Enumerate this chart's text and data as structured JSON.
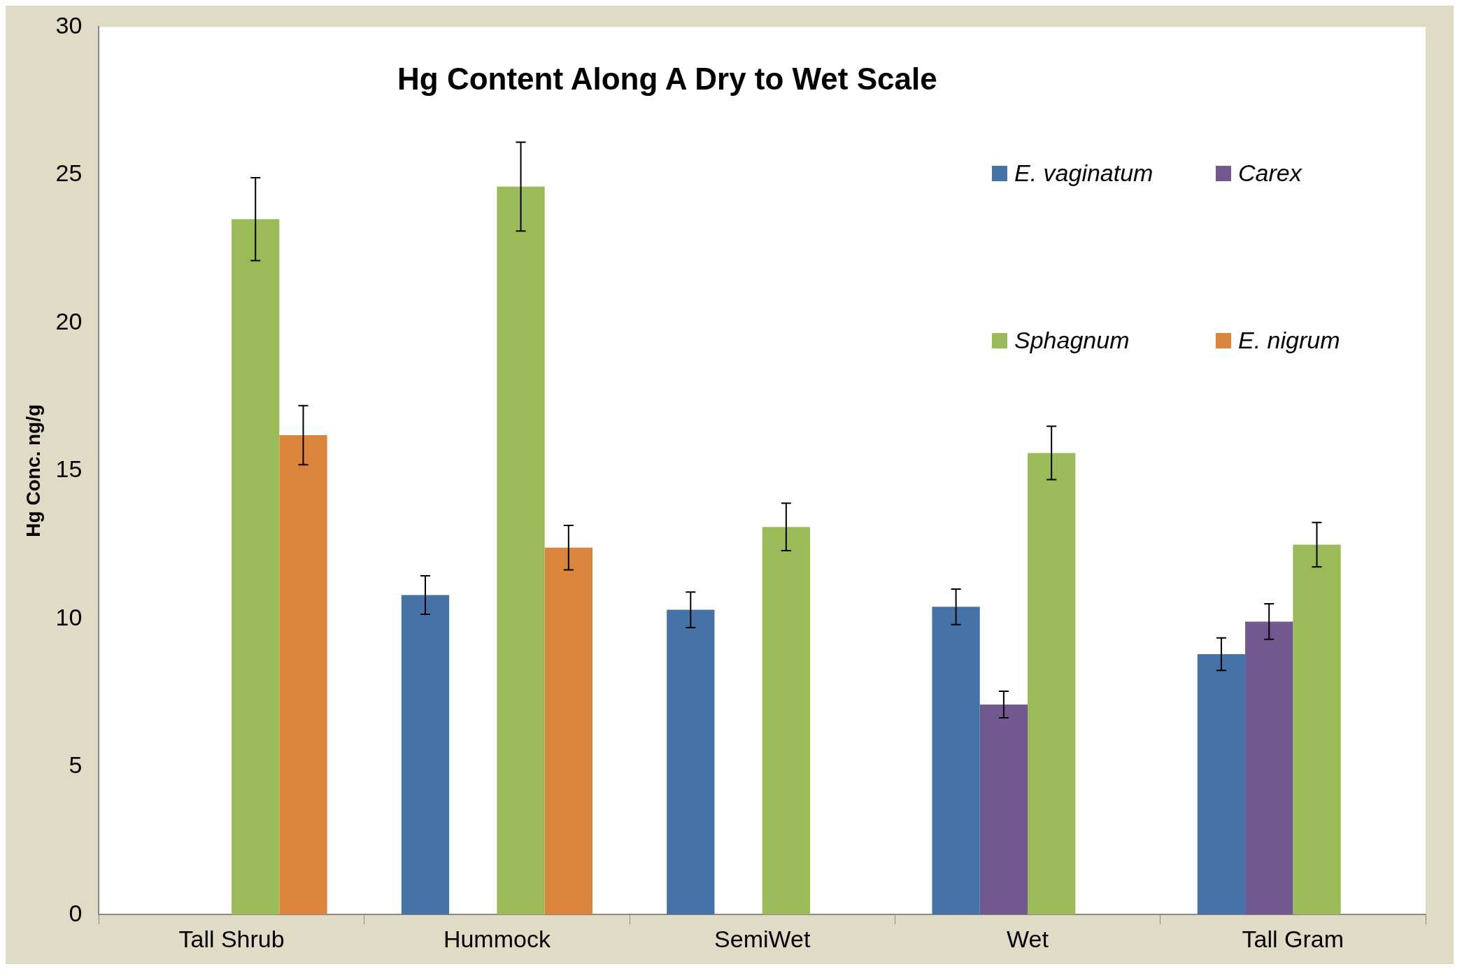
{
  "chart_data": {
    "type": "bar",
    "title": "Hg Content Along A Dry to Wet Scale",
    "ylabel": "Hg Conc. ng/g",
    "categories": [
      "Tall Shrub",
      "Hummock",
      "SemiWet",
      "Wet",
      "Tall Gram"
    ],
    "series": [
      {
        "name": "E. vaginatum",
        "color": "#4572a7",
        "values": [
          null,
          10.8,
          10.3,
          10.4,
          8.8
        ],
        "errors": [
          null,
          0.65,
          0.6,
          0.6,
          0.55
        ]
      },
      {
        "name": "Carex",
        "color": "#71588f",
        "values": [
          null,
          null,
          null,
          7.1,
          9.9
        ],
        "errors": [
          null,
          null,
          null,
          0.45,
          0.6
        ]
      },
      {
        "name": "Sphagnum",
        "color": "#9bbb59",
        "values": [
          23.5,
          24.6,
          13.1,
          15.6,
          12.5
        ],
        "errors": [
          1.4,
          1.5,
          0.8,
          0.9,
          0.75
        ]
      },
      {
        "name": "E. nigrum",
        "color": "#db843d",
        "values": [
          16.2,
          12.4,
          null,
          null,
          null
        ],
        "errors": [
          1.0,
          0.75,
          null,
          null,
          null
        ]
      }
    ],
    "ylim": [
      0,
      30
    ],
    "yticks": [
      0,
      5,
      10,
      15,
      20,
      25,
      30
    ],
    "grid": false,
    "legend": "top right"
  }
}
